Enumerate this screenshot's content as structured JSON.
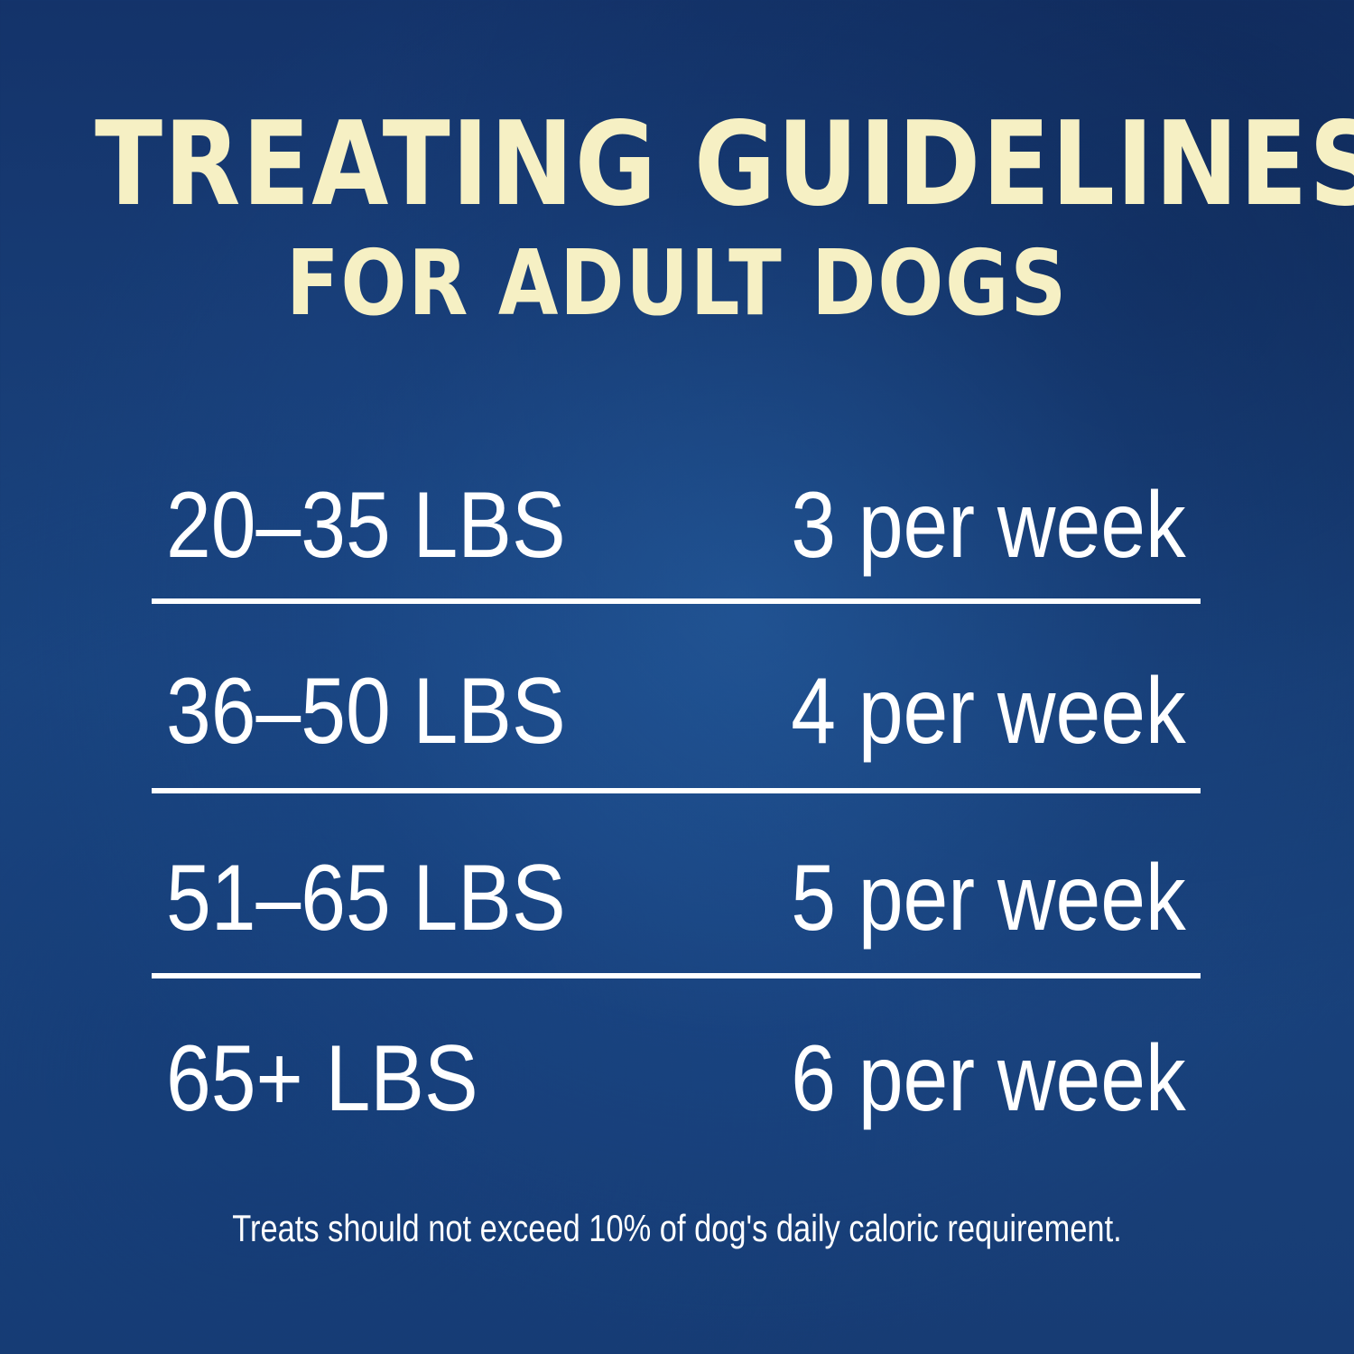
{
  "title": {
    "line1": "TREATING GUIDELINES",
    "line2": "FOR ADULT DOGS"
  },
  "rows": [
    {
      "weight": "20–35 LBS",
      "amount": "3 per week"
    },
    {
      "weight": "36–50 LBS",
      "amount": "4 per week"
    },
    {
      "weight": "51–65 LBS",
      "amount": "5 per week"
    },
    {
      "weight": "65+ LBS",
      "amount": "6 per week"
    }
  ],
  "footnote": "Treats should not exceed 10% of dog's daily caloric requirement.",
  "colors": {
    "background": "#1a4580",
    "title": "#f6f0c4",
    "text": "#ffffff"
  }
}
